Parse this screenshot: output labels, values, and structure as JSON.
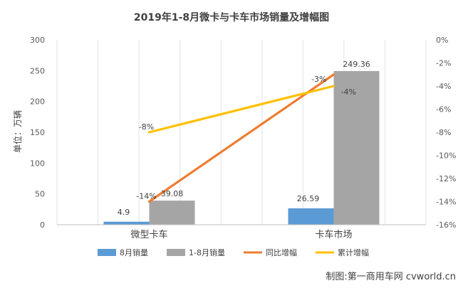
{
  "chart_data": {
    "type": "bar",
    "title": "2019年1-8月微卡与卡车市场销量及增幅图",
    "ylabel": "单位：万辆",
    "categories": [
      "微型卡车",
      "卡车市场"
    ],
    "ylim": [
      0,
      300
    ],
    "y_ticks": [
      "0",
      "50",
      "100",
      "150",
      "200",
      "250",
      "300"
    ],
    "y2lim": [
      -16,
      0
    ],
    "y2_ticks": [
      "0%",
      "-2%",
      "-4%",
      "-6%",
      "-8%",
      "-10%",
      "-12%",
      "-14%",
      "-16%"
    ],
    "grid": true,
    "legend_position": "bottom",
    "series": [
      {
        "name": "8月销量",
        "kind": "bar",
        "axis": "left",
        "color": "#5b9bd5",
        "values": [
          4.9,
          26.59
        ],
        "labels": [
          "4.9",
          "26.59"
        ]
      },
      {
        "name": "1-8月销量",
        "kind": "bar",
        "axis": "left",
        "color": "#a5a5a5",
        "values": [
          39.08,
          249.36
        ],
        "labels": [
          "39.08",
          "249.36"
        ]
      },
      {
        "name": "同比增幅",
        "kind": "line",
        "axis": "right",
        "color": "#ed7d31",
        "values": [
          -14,
          -3
        ],
        "labels": [
          "-14%",
          "-3%"
        ]
      },
      {
        "name": "累计增幅",
        "kind": "line",
        "axis": "right",
        "color": "#ffc000",
        "values": [
          -8,
          -4
        ],
        "labels": [
          "-8%",
          "-4%"
        ]
      }
    ]
  },
  "credit": "制图:第一商用车网 cvworld.cn"
}
